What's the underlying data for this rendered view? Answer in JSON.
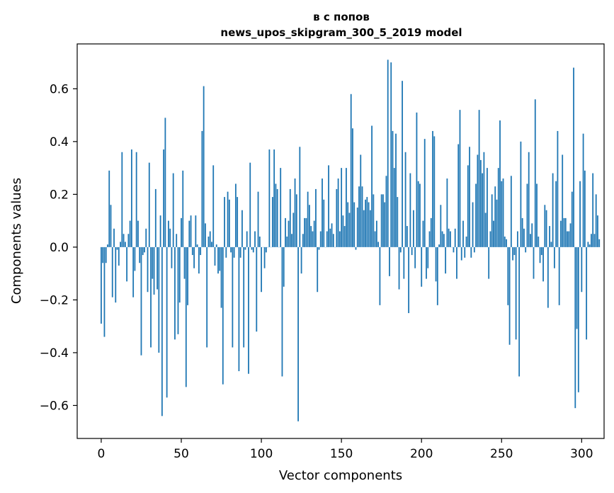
{
  "chart_data": {
    "type": "bar",
    "title_lines": [
      "в с попов",
      "news_upos_skipgram_300_5_2019 model"
    ],
    "xlabel": "Vector components",
    "ylabel": "Components values",
    "xlim": [
      -15,
      314
    ],
    "ylim": [
      -0.725,
      0.77
    ],
    "xticks": [
      0,
      50,
      100,
      150,
      200,
      250,
      300
    ],
    "yticks": [
      -0.6,
      -0.4,
      -0.2,
      0.0,
      0.2,
      0.4,
      0.6
    ],
    "ytick_labels": [
      "−0.6",
      "−0.4",
      "−0.2",
      "0.0",
      "0.2",
      "0.4",
      "0.6"
    ],
    "grid": false,
    "bar_color": "#1f77b4",
    "values": [
      -0.29,
      -0.06,
      -0.34,
      -0.06,
      0.01,
      0.29,
      0.16,
      -0.19,
      0.07,
      -0.21,
      -0.01,
      -0.07,
      0.02,
      0.36,
      0.05,
      0.02,
      -0.13,
      0.05,
      0.1,
      0.37,
      -0.19,
      -0.09,
      0.36,
      0.1,
      -0.06,
      -0.41,
      -0.03,
      -0.02,
      0.07,
      -0.17,
      0.32,
      -0.38,
      -0.12,
      -0.18,
      0.22,
      -0.16,
      -0.4,
      0.12,
      -0.64,
      0.37,
      0.49,
      -0.57,
      0.1,
      0.07,
      -0.08,
      0.28,
      -0.35,
      0.05,
      -0.33,
      -0.21,
      0.11,
      0.29,
      -0.12,
      -0.53,
      -0.22,
      0.1,
      0.12,
      -0.03,
      -0.08,
      0.12,
      0.01,
      -0.1,
      -0.03,
      0.44,
      0.61,
      0.09,
      -0.38,
      0.04,
      0.06,
      0.02,
      0.31,
      -0.07,
      0.01,
      -0.1,
      -0.09,
      -0.23,
      -0.52,
      0.19,
      -0.04,
      0.21,
      0.18,
      -0.02,
      -0.38,
      -0.04,
      0.24,
      0.19,
      -0.47,
      -0.04,
      0.14,
      -0.38,
      -0.01,
      0.06,
      -0.48,
      0.32,
      -0.01,
      -0.02,
      0.06,
      -0.32,
      0.21,
      0.04,
      -0.17,
      0.0,
      -0.08,
      -0.02,
      0.0,
      0.37,
      0.0,
      0.19,
      0.37,
      0.24,
      0.22,
      0.0,
      0.3,
      -0.49,
      -0.15,
      0.11,
      0.04,
      0.1,
      0.22,
      0.05,
      0.13,
      0.26,
      0.2,
      -0.66,
      0.38,
      -0.1,
      0.05,
      0.11,
      0.11,
      0.21,
      0.16,
      0.08,
      0.06,
      0.1,
      0.22,
      -0.17,
      -0.01,
      0.06,
      0.26,
      0.18,
      0.0,
      0.06,
      0.31,
      0.07,
      0.09,
      0.05,
      0.0,
      0.22,
      0.26,
      0.06,
      0.3,
      0.12,
      0.08,
      0.3,
      0.17,
      0.13,
      0.58,
      0.45,
      0.17,
      -0.01,
      0.15,
      0.23,
      0.35,
      0.23,
      0.14,
      0.18,
      0.19,
      0.17,
      0.14,
      0.46,
      0.2,
      0.06,
      0.1,
      0.02,
      -0.22,
      0.2,
      0.2,
      0.17,
      0.27,
      0.71,
      -0.11,
      0.7,
      0.44,
      0.3,
      0.43,
      0.19,
      -0.16,
      -0.02,
      0.63,
      -0.12,
      0.36,
      0.08,
      -0.25,
      0.28,
      -0.03,
      0.14,
      -0.08,
      0.51,
      0.25,
      0.24,
      -0.15,
      0.1,
      0.41,
      -0.12,
      -0.08,
      0.06,
      0.11,
      0.44,
      0.42,
      -0.13,
      -0.22,
      0.01,
      0.16,
      0.06,
      0.05,
      -0.1,
      0.26,
      0.07,
      0.06,
      0.0,
      -0.02,
      0.07,
      -0.12,
      0.39,
      0.52,
      -0.05,
      0.1,
      -0.04,
      0.04,
      0.31,
      0.38,
      -0.04,
      0.17,
      -0.02,
      0.24,
      0.35,
      0.52,
      0.33,
      0.28,
      0.36,
      0.13,
      0.3,
      -0.12,
      0.06,
      0.2,
      0.1,
      0.23,
      0.18,
      0.3,
      0.48,
      0.25,
      0.26,
      0.04,
      0.03,
      -0.22,
      -0.37,
      0.27,
      -0.05,
      -0.03,
      -0.35,
      0.06,
      -0.49,
      0.4,
      0.11,
      0.07,
      -0.02,
      0.24,
      0.36,
      0.05,
      0.09,
      -0.12,
      0.56,
      0.24,
      0.04,
      -0.06,
      -0.03,
      -0.13,
      0.16,
      0.14,
      -0.23,
      0.08,
      0.02,
      0.28,
      -0.08,
      0.25,
      0.44,
      -0.22,
      0.1,
      0.35,
      0.11,
      0.11,
      0.06,
      0.06,
      0.09,
      0.21,
      0.68,
      -0.61,
      -0.31,
      -0.55,
      0.25,
      -0.17,
      0.43,
      0.29,
      -0.35,
      0.02,
      0.01,
      0.05,
      0.28,
      0.05,
      0.2,
      0.12,
      0.03
    ]
  }
}
